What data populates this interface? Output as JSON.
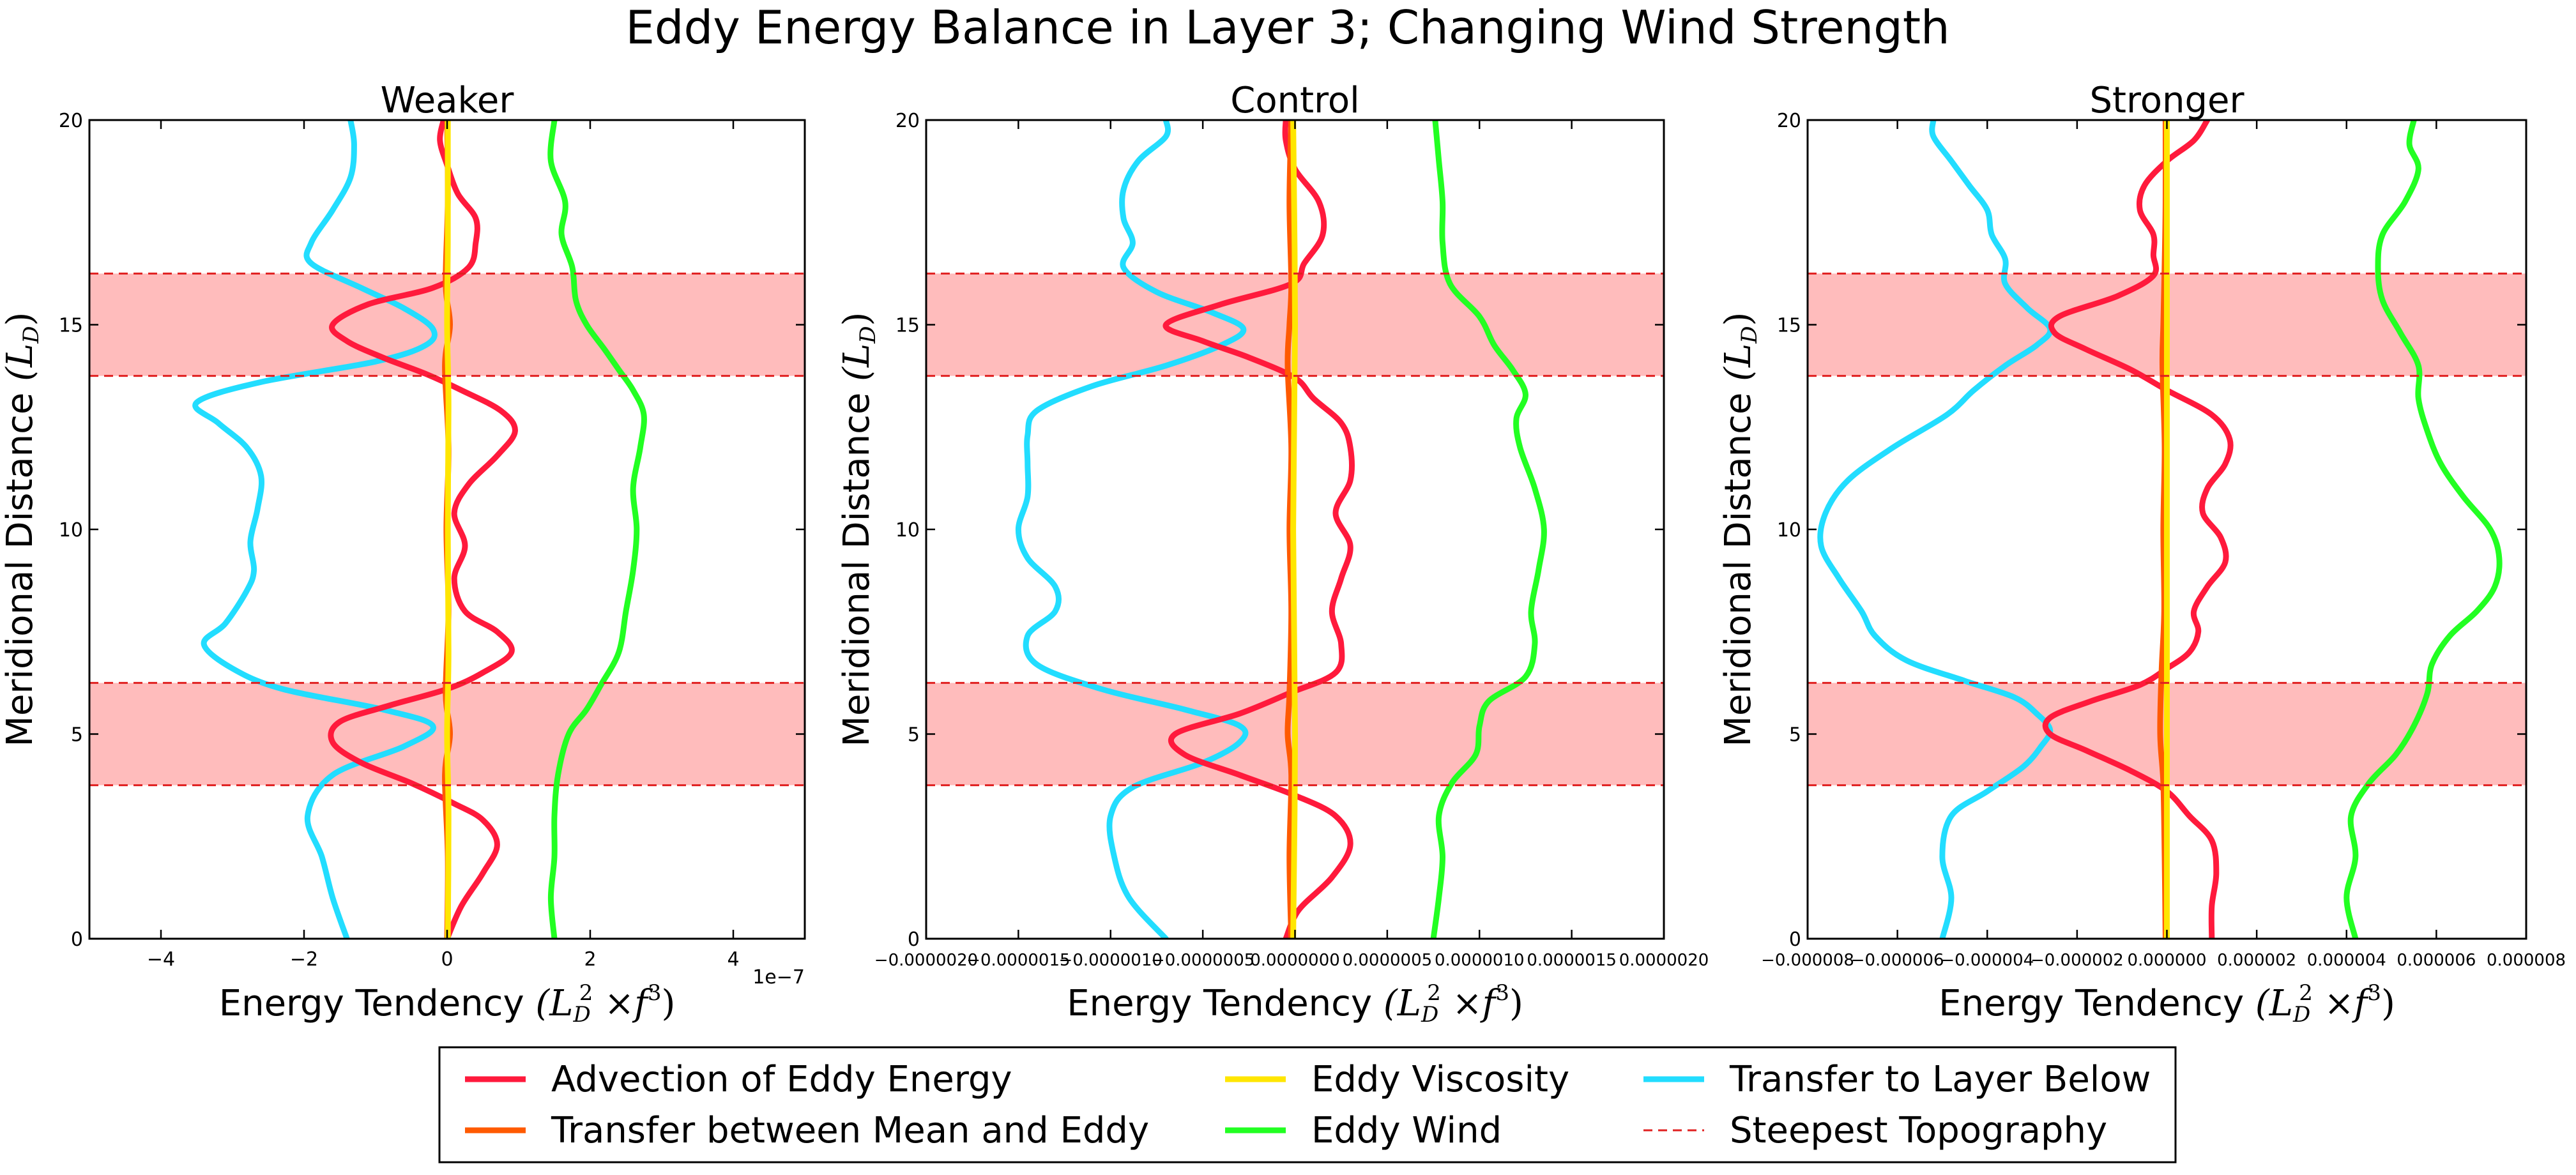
{
  "figure": {
    "title": "Eddy Energy Balance in Layer 3; Changing Wind Strength",
    "colors": {
      "Advection of Eddy Energy": "#ff1a3c",
      "Transfer between Mean and Eddy": "#ff5a00",
      "Eddy Viscosity": "#ffe600",
      "Eddy Wind": "#22ff22",
      "Transfer to Layer Below": "#22ddff",
      "Steepest Topography": "#e02020",
      "band": "#ffbcbc"
    },
    "legend": {
      "position": "bottom-center",
      "entries": [
        {
          "label": "Advection of Eddy Energy",
          "style": "solid"
        },
        {
          "label": "Transfer between Mean and Eddy",
          "style": "solid"
        },
        {
          "label": "Eddy Viscosity",
          "style": "solid"
        },
        {
          "label": "Eddy Wind",
          "style": "solid"
        },
        {
          "label": "Transfer to Layer Below",
          "style": "solid"
        },
        {
          "label": "Steepest Topography",
          "style": "dashed"
        }
      ]
    }
  },
  "chart_data": [
    {
      "type": "line",
      "title": "Weaker",
      "xlabel": "Energy Tendency",
      "xlabel_math": "(L_D^2 × f^3)",
      "ylabel": "Meridional Distance",
      "ylabel_math": "(L_D)",
      "xlim": [
        -5e-07,
        5e-07
      ],
      "ylim": [
        0,
        20
      ],
      "xtick_values": [
        -4e-07,
        -2e-07,
        0,
        2e-07,
        4e-07
      ],
      "xtick_labels": [
        "−4",
        "−2",
        "0",
        "2",
        "4"
      ],
      "ytick_values": [
        0,
        5,
        10,
        15,
        20
      ],
      "ytick_labels": [
        "0",
        "5",
        "10",
        "15",
        "20"
      ],
      "offset_label": "1e−7",
      "bands": [
        [
          3.75,
          6.25
        ],
        [
          13.75,
          16.25
        ]
      ],
      "series": [
        {
          "name": "Transfer to Layer Below",
          "y": [
            0,
            1,
            2,
            3,
            4,
            4.7,
            5.2,
            5.6,
            6.1,
            6.6,
            7.2,
            7.7,
            8.5,
            9,
            9.7,
            10.5,
            11.3,
            12,
            12.6,
            13.1,
            13.6,
            14.1,
            14.5,
            14.9,
            15.4,
            15.9,
            16.5,
            17,
            17.8,
            18.6,
            19.4,
            20
          ],
          "x": [
            -1.4e-07,
            -1.6e-07,
            -1.75e-07,
            -1.95e-07,
            -1.6e-07,
            -6e-08,
            -2e-08,
            -9e-08,
            -2.3e-07,
            -3e-07,
            -3.4e-07,
            -3.1e-07,
            -2.8e-07,
            -2.7e-07,
            -2.75e-07,
            -2.65e-07,
            -2.6e-07,
            -2.8e-07,
            -3.2e-07,
            -3.5e-07,
            -2.6e-07,
            -1e-07,
            -3e-08,
            -2e-08,
            -6e-08,
            -1.2e-07,
            -1.9e-07,
            -1.9e-07,
            -1.6e-07,
            -1.35e-07,
            -1.3e-07,
            -1.35e-07
          ]
        },
        {
          "name": "Advection of Eddy Energy",
          "y": [
            0,
            0.8,
            1.6,
            2.3,
            2.9,
            3.3,
            3.8,
            4.3,
            4.8,
            5.3,
            5.7,
            6.1,
            6.5,
            7,
            7.5,
            8,
            8.8,
            9.6,
            10.4,
            11.1,
            11.8,
            12.4,
            12.9,
            13.4,
            13.8,
            14.2,
            14.6,
            15,
            15.5,
            15.9,
            16.4,
            17,
            17.6,
            18.2,
            18.9,
            19.5,
            20
          ],
          "x": [
            0,
            2e-08,
            5e-08,
            7e-08,
            5e-08,
            1e-08,
            -5e-08,
            -1.2e-07,
            -1.6e-07,
            -1.5e-07,
            -8e-08,
            0,
            5e-08,
            9e-08,
            7e-08,
            2.5e-08,
            1e-08,
            2.5e-08,
            1e-08,
            3e-08,
            7e-08,
            9.5e-08,
            7.5e-08,
            2e-08,
            -3e-08,
            -9e-08,
            -1.4e-07,
            -1.6e-07,
            -1.1e-07,
            -2e-08,
            3e-08,
            4e-08,
            4e-08,
            1.5e-08,
            0,
            -1e-08,
            -5e-09
          ]
        },
        {
          "name": "Transfer between Mean and Eddy",
          "y": [
            0,
            2,
            4,
            5,
            6,
            8,
            10,
            12,
            14,
            15,
            16,
            18,
            20
          ],
          "x": [
            0,
            1e-09,
            -3e-09,
            4e-09,
            -2e-09,
            2e-09,
            -1e-09,
            2e-09,
            -3e-09,
            4e-09,
            -2e-09,
            1e-09,
            0
          ]
        },
        {
          "name": "Eddy Viscosity",
          "y": [
            0,
            3,
            5,
            7,
            10,
            13,
            15,
            17,
            20
          ],
          "x": [
            1e-09,
            2e-09,
            0,
            2e-09,
            1e-09,
            2e-09,
            0,
            1e-09,
            1e-09
          ]
        },
        {
          "name": "Eddy Wind",
          "y": [
            0,
            1,
            2,
            3,
            4,
            5,
            5.6,
            6.2,
            7,
            8,
            9,
            10,
            11,
            12,
            12.8,
            13.4,
            13.9,
            14.4,
            15,
            15.6,
            16.4,
            17.2,
            18,
            19,
            20
          ],
          "x": [
            1.5e-07,
            1.45e-07,
            1.5e-07,
            1.5e-07,
            1.55e-07,
            1.7e-07,
            1.95e-07,
            2.15e-07,
            2.4e-07,
            2.5e-07,
            2.6e-07,
            2.65e-07,
            2.6e-07,
            2.7e-07,
            2.75e-07,
            2.6e-07,
            2.4e-07,
            2.2e-07,
            1.95e-07,
            1.8e-07,
            1.75e-07,
            1.6e-07,
            1.65e-07,
            1.45e-07,
            1.5e-07
          ]
        },
        {
          "name": "Steepest Topography",
          "style": "dashed",
          "y": [
            3.75,
            6.25,
            13.75,
            16.25
          ]
        }
      ]
    },
    {
      "type": "line",
      "title": "Control",
      "xlabel": "Energy Tendency",
      "xlabel_math": "(L_D^2 × f^3)",
      "ylabel": "Meridional Distance",
      "ylabel_math": "(L_D)",
      "xlim": [
        -2e-06,
        2e-06
      ],
      "ylim": [
        0,
        20
      ],
      "xtick_values": [
        -2e-06,
        -1.5e-06,
        -1e-06,
        -5e-07,
        0,
        5e-07,
        1e-06,
        1.5e-06,
        2e-06
      ],
      "xtick_labels": [
        "−0.0000020",
        "−0.0000015",
        "−0.0000010",
        "−0.0000005",
        "0.0000000",
        "0.0000005",
        "0.0000010",
        "0.0000015",
        "0.0000020"
      ],
      "ytick_values": [
        0,
        5,
        10,
        15,
        20
      ],
      "ytick_labels": [
        "0",
        "5",
        "10",
        "15",
        "20"
      ],
      "offset_label": "",
      "bands": [
        [
          3.75,
          6.25
        ],
        [
          13.75,
          16.25
        ]
      ],
      "series": [
        {
          "name": "Transfer to Layer Below",
          "y": [
            0,
            1,
            2,
            3,
            3.7,
            4.3,
            4.8,
            5.2,
            5.6,
            6.1,
            6.7,
            7.4,
            8,
            8.6,
            9.3,
            10,
            10.8,
            11.6,
            12.3,
            12.9,
            13.5,
            14,
            14.5,
            14.9,
            15.3,
            15.8,
            16.4,
            17,
            17.6,
            18.3,
            19,
            19.6,
            20
          ],
          "x": [
            -7e-07,
            -9e-07,
            -9.8e-07,
            -1e-06,
            -8.8e-07,
            -5e-07,
            -3e-07,
            -3e-07,
            -6e-07,
            -1.05e-06,
            -1.4e-06,
            -1.45e-06,
            -1.3e-06,
            -1.3e-06,
            -1.45e-06,
            -1.5e-06,
            -1.45e-06,
            -1.45e-06,
            -1.45e-06,
            -1.4e-06,
            -1.1e-06,
            -7e-07,
            -4e-07,
            -2.8e-07,
            -4.5e-07,
            -7.5e-07,
            -9.3e-07,
            -8.8e-07,
            -9.3e-07,
            -9.3e-07,
            -8.5e-07,
            -7e-07,
            -7e-07
          ]
        },
        {
          "name": "Advection of Eddy Energy",
          "y": [
            0,
            0.7,
            1.5,
            2.3,
            3,
            3.5,
            4,
            4.5,
            5,
            5.5,
            6,
            6.5,
            7.2,
            8,
            8.8,
            9.6,
            10.4,
            11.2,
            12,
            12.6,
            13.2,
            13.7,
            14.2,
            14.6,
            15,
            15.5,
            16,
            16.5,
            17.2,
            18,
            18.8,
            19.5,
            20
          ],
          "x": [
            -5e-08,
            2e-08,
            2e-07,
            3e-07,
            2.2e-07,
            0,
            -3e-07,
            -6e-07,
            -6.5e-07,
            -3e-07,
            -3e-08,
            2.2e-07,
            2.5e-07,
            2e-07,
            2.5e-07,
            3e-07,
            2.2e-07,
            3e-07,
            3e-07,
            2.5e-07,
            1e-07,
            0,
            -2.5e-07,
            -5e-07,
            -7e-07,
            -4e-07,
            -2e-08,
            5e-08,
            1.5e-07,
            1.3e-07,
            0,
            -5e-08,
            -5e-08
          ]
        },
        {
          "name": "Transfer between Mean and Eddy",
          "y": [
            0,
            2,
            4,
            5,
            6,
            8,
            10,
            12,
            14,
            15,
            16,
            18,
            20
          ],
          "x": [
            -2e-08,
            -3e-08,
            -2e-08,
            -4e-08,
            -3e-08,
            -2e-08,
            -3e-08,
            -2e-08,
            -4e-08,
            -3e-08,
            -2e-08,
            -3e-08,
            -2e-08
          ]
        },
        {
          "name": "Eddy Viscosity",
          "y": [
            0,
            5,
            10,
            15,
            20
          ],
          "x": [
            -1e-08,
            0,
            -1e-08,
            0,
            -1e-08
          ]
        },
        {
          "name": "Eddy Wind",
          "y": [
            0,
            1,
            2,
            3,
            3.8,
            4.5,
            5.2,
            5.8,
            6.4,
            7.2,
            8,
            9,
            10,
            11,
            12,
            12.7,
            13.3,
            13.9,
            14.5,
            15.2,
            16,
            17,
            18,
            19,
            20
          ],
          "x": [
            7.5e-07,
            7.8e-07,
            8e-07,
            7.8e-07,
            8.5e-07,
            9.8e-07,
            1e-06,
            1.05e-06,
            1.25e-06,
            1.3e-06,
            1.28e-06,
            1.32e-06,
            1.35e-06,
            1.3e-06,
            1.22e-06,
            1.2e-06,
            1.25e-06,
            1.18e-06,
            1.08e-06,
            1e-06,
            8.4e-07,
            8e-07,
            8e-07,
            7.8e-07,
            7.6e-07
          ]
        },
        {
          "name": "Steepest Topography",
          "style": "dashed",
          "y": [
            3.75,
            6.25,
            13.75,
            16.25
          ]
        }
      ]
    },
    {
      "type": "line",
      "title": "Stronger",
      "xlabel": "Energy Tendency",
      "xlabel_math": "(L_D^2 × f^3)",
      "ylabel": "Meridional Distance",
      "ylabel_math": "(L_D)",
      "xlim": [
        -8e-06,
        8e-06
      ],
      "ylim": [
        0,
        20
      ],
      "xtick_values": [
        -8e-06,
        -6e-06,
        -4e-06,
        -2e-06,
        0,
        2e-06,
        4e-06,
        6e-06,
        8e-06
      ],
      "xtick_labels": [
        "−0.000008",
        "−0.000006",
        "−0.000004",
        "−0.000002",
        "0.000000",
        "0.000002",
        "0.000004",
        "0.000006",
        "0.000008"
      ],
      "ytick_values": [
        0,
        5,
        10,
        15,
        20
      ],
      "ytick_labels": [
        "0",
        "5",
        "10",
        "15",
        "20"
      ],
      "offset_label": "",
      "bands": [
        [
          3.75,
          6.25
        ],
        [
          13.75,
          16.25
        ]
      ],
      "series": [
        {
          "name": "Transfer to Layer Below",
          "y": [
            0,
            1,
            2,
            3,
            3.6,
            4.2,
            4.7,
            5.1,
            5.5,
            5.9,
            6.3,
            6.8,
            7.4,
            8,
            8.8,
            9.6,
            10.4,
            11.2,
            12,
            12.8,
            13.4,
            14,
            14.5,
            14.9,
            15.4,
            16,
            16.6,
            17.2,
            17.8,
            18.4,
            19,
            19.6,
            20
          ],
          "x": [
            -5e-06,
            -4.8e-06,
            -5e-06,
            -4.8e-06,
            -4e-06,
            -3.2e-06,
            -2.8e-06,
            -2.6e-06,
            -2.9e-06,
            -3.4e-06,
            -4.5e-06,
            -5.8e-06,
            -6.5e-06,
            -6.8e-06,
            -7.3e-06,
            -7.7e-06,
            -7.6e-06,
            -7.1e-06,
            -6.1e-06,
            -4.9e-06,
            -4.3e-06,
            -3.6e-06,
            -2.9e-06,
            -2.6e-06,
            -3.1e-06,
            -3.6e-06,
            -3.6e-06,
            -3.9e-06,
            -4e-06,
            -4.4e-06,
            -4.8e-06,
            -5.2e-06,
            -5.2e-06
          ]
        },
        {
          "name": "Advection of Eddy Energy",
          "y": [
            0,
            0.8,
            1.6,
            2.4,
            3,
            3.6,
            4.1,
            4.6,
            5,
            5.4,
            5.8,
            6.2,
            6.6,
            7,
            7.5,
            8,
            8.6,
            9.2,
            9.8,
            10.4,
            11,
            11.6,
            12.2,
            12.8,
            13.4,
            13.9,
            14.4,
            14.8,
            15.2,
            15.7,
            16.2,
            16.7,
            17.2,
            17.8,
            18.4,
            19,
            19.5,
            20
          ],
          "x": [
            1e-06,
            1e-06,
            1.1e-06,
            1e-06,
            5e-07,
            0,
            -8e-07,
            -1.8e-06,
            -2.6e-06,
            -2.6e-06,
            -1.7e-06,
            -6e-07,
            0,
            5e-07,
            7e-07,
            6e-07,
            9e-07,
            1.3e-06,
            1.2e-06,
            8e-07,
            9e-07,
            1.3e-06,
            1.4e-06,
            1e-06,
            0,
            -8e-07,
            -1.8e-06,
            -2.5e-06,
            -2.4e-06,
            -1.1e-06,
            -3e-07,
            -3e-07,
            -3e-07,
            -6e-07,
            -5e-07,
            0,
            6e-07,
            9e-07
          ]
        },
        {
          "name": "Transfer between Mean and Eddy",
          "y": [
            0,
            2,
            3.8,
            5,
            6.5,
            8,
            10,
            12,
            14,
            15,
            16.5,
            18,
            20
          ],
          "x": [
            -3e-08,
            -5e-08,
            -8e-08,
            -1.5e-07,
            -1.2e-07,
            -6e-08,
            -8e-08,
            -5e-08,
            -1e-07,
            -8e-08,
            -5e-08,
            -3e-08,
            -3e-08
          ]
        },
        {
          "name": "Eddy Viscosity",
          "y": [
            0,
            5,
            10,
            15,
            20
          ],
          "x": [
            0,
            0,
            0,
            0,
            0
          ]
        },
        {
          "name": "Eddy Wind",
          "y": [
            0,
            1,
            2,
            3,
            3.8,
            4.5,
            5.2,
            6,
            6.7,
            7.4,
            8,
            8.6,
            9.3,
            10,
            10.8,
            11.6,
            12.4,
            13.2,
            14,
            14.8,
            15.6,
            16.4,
            17.2,
            18,
            18.8,
            19.4,
            20
          ],
          "x": [
            4.2e-06,
            4e-06,
            4.2e-06,
            4.1e-06,
            4.5e-06,
            5.1e-06,
            5.5e-06,
            5.8e-06,
            5.9e-06,
            6.3e-06,
            6.9e-06,
            7.3e-06,
            7.4e-06,
            7.2e-06,
            6.6e-06,
            6.1e-06,
            5.8e-06,
            5.6e-06,
            5.6e-06,
            5.2e-06,
            4.8e-06,
            4.7e-06,
            4.8e-06,
            5.3e-06,
            5.6e-06,
            5.4e-06,
            5.5e-06
          ]
        },
        {
          "name": "Steepest Topography",
          "style": "dashed",
          "y": [
            3.75,
            6.25,
            13.75,
            16.25
          ]
        }
      ]
    }
  ]
}
